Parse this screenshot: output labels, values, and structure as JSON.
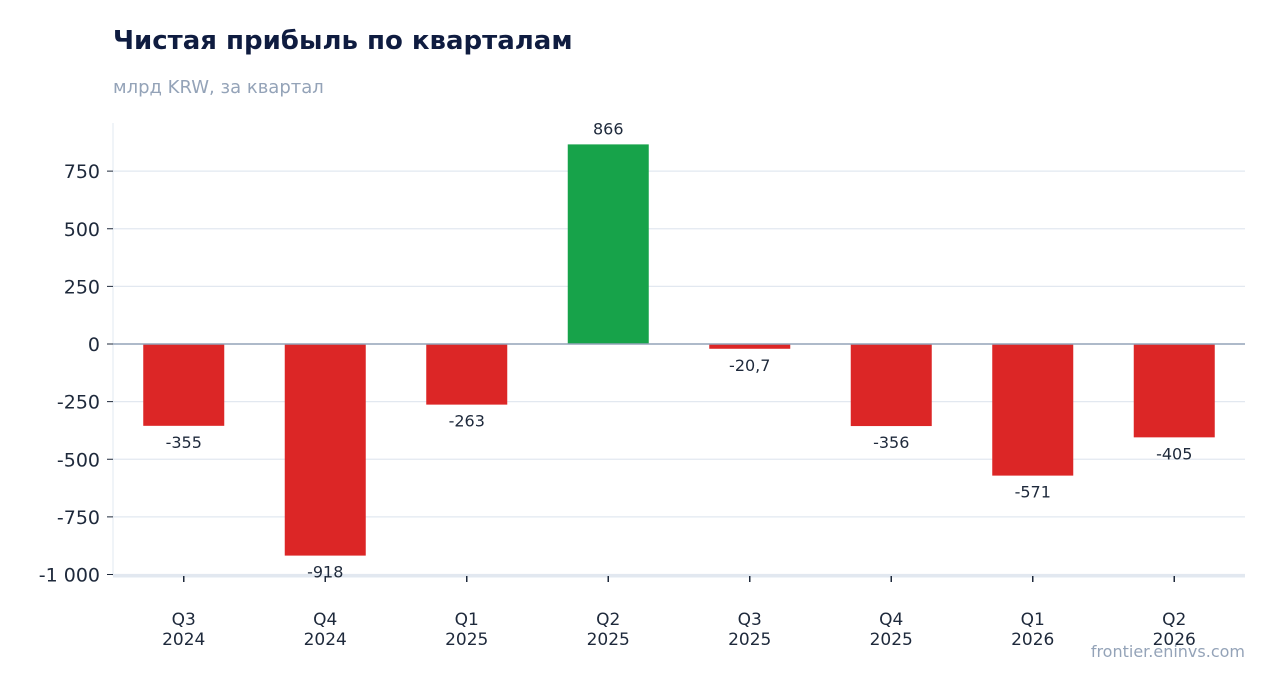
{
  "header": {
    "title": "Чистая прибыль по кварталам",
    "subtitle": "млрд KRW, за квартал"
  },
  "footer": {
    "source": "frontier.eninvs.com"
  },
  "chart_data": {
    "type": "bar",
    "title": "Чистая прибыль по кварталам",
    "subtitle": "млрд KRW, за квартал",
    "categories": [
      [
        "Q3",
        "2024"
      ],
      [
        "Q4",
        "2024"
      ],
      [
        "Q1",
        "2025"
      ],
      [
        "Q2",
        "2025"
      ],
      [
        "Q3",
        "2025"
      ],
      [
        "Q4",
        "2025"
      ],
      [
        "Q1",
        "2026"
      ],
      [
        "Q2",
        "2026"
      ]
    ],
    "values": [
      -355,
      -918,
      -263,
      866,
      -20.7,
      -356,
      -571,
      -405
    ],
    "value_labels": [
      "-355",
      "-918",
      "-263",
      "866",
      "-20,7",
      "-356",
      "-571",
      "-405"
    ],
    "yticks": [
      -1000,
      -750,
      -500,
      -250,
      0,
      250,
      500,
      750
    ],
    "ytick_labels": [
      "-1 000",
      "-750",
      "-500",
      "-250",
      "0",
      "250",
      "500",
      "750"
    ],
    "ylim": [
      -1000,
      950
    ],
    "grid": true,
    "colors": {
      "positive": "#17a34a",
      "negative": "#dc2626",
      "grid": "#e2e8f0",
      "zero_line": "#94a3b8",
      "axis_text": "#1e293b",
      "label_text": "#1e293b"
    }
  }
}
